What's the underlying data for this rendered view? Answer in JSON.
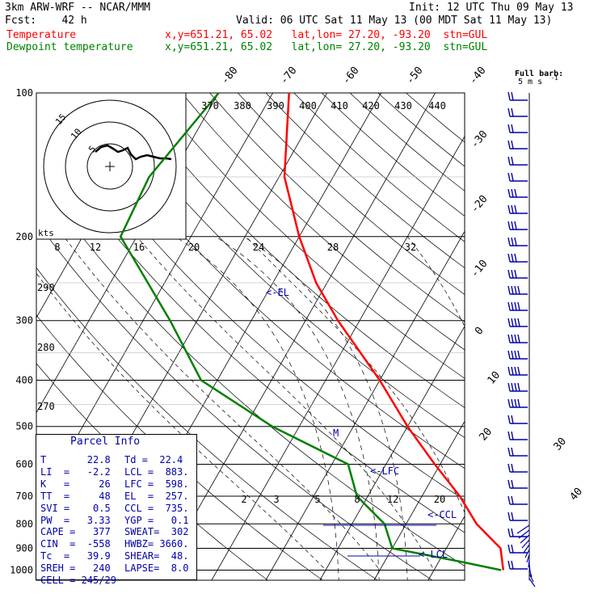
{
  "header": {
    "model": "3km ARW-WRF -- NCAR/MMM",
    "init": "Init: 12 UTC Thu 09 May 13",
    "fcst": "Fcst:    42 h",
    "valid": "Valid: 06 UTC Sat 11 May 13 (00 MDT Sat 11 May 13)",
    "fields": [
      {
        "name": "Temperature",
        "info": "x,y=651.21, 65.02   lat,lon= 27.20, -93.20  stn=GUL",
        "color": "#ff0000"
      },
      {
        "name": "Dewpoint temperature",
        "info": "x,y=651.21, 65.02   lat,lon= 27.20, -93.20  stn=GUL",
        "color": "#008000"
      }
    ]
  },
  "barb_legend": {
    "title": "Full barb:",
    "value": "5 m s",
    "exp": "-1"
  },
  "colors": {
    "temperature": "#ff0000",
    "dewpoint": "#008000",
    "info": "#0000aa",
    "grid": "#000000"
  },
  "chart_data": {
    "type": "line",
    "chart": "skew-T log-p diagram",
    "pressure_levels": [
      "100",
      "200",
      "300",
      "400",
      "500",
      "600",
      "700",
      "800",
      "900",
      "1000"
    ],
    "isotherm_labels": [
      "-80",
      "-70",
      "-60",
      "-50",
      "-40",
      "-30",
      "-20",
      "-10",
      "0",
      "10",
      "20",
      "30",
      "40"
    ],
    "mixing_ratio_labels": [
      "2",
      "3",
      "5",
      "8",
      "12",
      "20"
    ],
    "theta_labels": [
      "290",
      "280",
      "270"
    ],
    "series": [
      {
        "name": "Temperature",
        "color": "#ff0000",
        "points": [
          [
            100,
            -67
          ],
          [
            150,
            -59
          ],
          [
            200,
            -50
          ],
          [
            250,
            -42
          ],
          [
            300,
            -34
          ],
          [
            400,
            -20
          ],
          [
            500,
            -10
          ],
          [
            600,
            -1
          ],
          [
            700,
            7
          ],
          [
            800,
            13
          ],
          [
            900,
            20
          ],
          [
            1000,
            22.8
          ]
        ]
      },
      {
        "name": "Dewpoint temperature",
        "color": "#008000",
        "points": [
          [
            100,
            -80
          ],
          [
            150,
            -84
          ],
          [
            200,
            -83
          ],
          [
            300,
            -65
          ],
          [
            400,
            -53
          ],
          [
            500,
            -35
          ],
          [
            600,
            -17
          ],
          [
            700,
            -12
          ],
          [
            800,
            -4
          ],
          [
            900,
            0
          ],
          [
            960,
            14
          ],
          [
            1000,
            22.4
          ]
        ]
      }
    ],
    "annotations": [
      "<-EL",
      "M",
      "<-LFC",
      "<-CCL",
      "<-LCL"
    ],
    "hodograph": {
      "units": "kts",
      "ring_labels": [
        "15",
        "10",
        "5"
      ],
      "speed_labels": [
        "8",
        "12",
        "16",
        "20",
        "24",
        "28",
        "32"
      ],
      "theta_e_labels": [
        "370",
        "380",
        "390",
        "400",
        "410",
        "420",
        "430",
        "440"
      ]
    }
  },
  "parcel_info": {
    "title": "Parcel Info",
    "rows": [
      [
        "T       22.8",
        "Td =  22.4"
      ],
      [
        "LI  =   -2.2",
        "LCL =  883."
      ],
      [
        "K   =     26",
        "LFC =  598."
      ],
      [
        "TT  =     48",
        "EL  =  257."
      ],
      [
        "SVI =    0.5",
        "CCL =  735."
      ],
      [
        "PW  =   3.33",
        "YGP =   0.1"
      ],
      [
        "CAPE =   377",
        "SWEAT=  302"
      ],
      [
        "CIN  =  -558",
        "HWBZ= 3660."
      ],
      [
        "Tc  =   39.9",
        "SHEAR=  48."
      ],
      [
        "SREH =   240",
        "LAPSE=  8.0"
      ],
      [
        "CELL = 245/29",
        ""
      ]
    ]
  }
}
